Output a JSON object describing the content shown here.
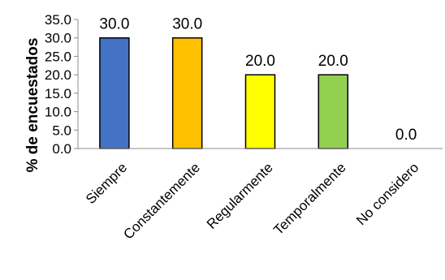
{
  "chart_data": {
    "type": "bar",
    "title": "",
    "xlabel": "",
    "ylabel": "% de encuestados",
    "categories": [
      "Siempre",
      "Constantemente",
      "Regularmente",
      "Temporalmente",
      "No considero"
    ],
    "values": [
      30.0,
      30.0,
      20.0,
      20.0,
      0.0
    ],
    "value_labels": [
      "30.0",
      "30.0",
      "20.0",
      "20.0",
      "0.0"
    ],
    "colors": [
      "#4472C4",
      "#FFC000",
      "#FFFF00",
      "#92D050",
      "#7F7F7F"
    ],
    "ylim": [
      0,
      35
    ],
    "yticks": [
      0,
      5,
      10,
      15,
      20,
      25,
      30,
      35
    ],
    "ytick_labels": [
      "0.0",
      "5.0",
      "10.0",
      "15.0",
      "20.0",
      "25.0",
      "30.0",
      "35.0"
    ],
    "grid": false,
    "legend": "none"
  }
}
